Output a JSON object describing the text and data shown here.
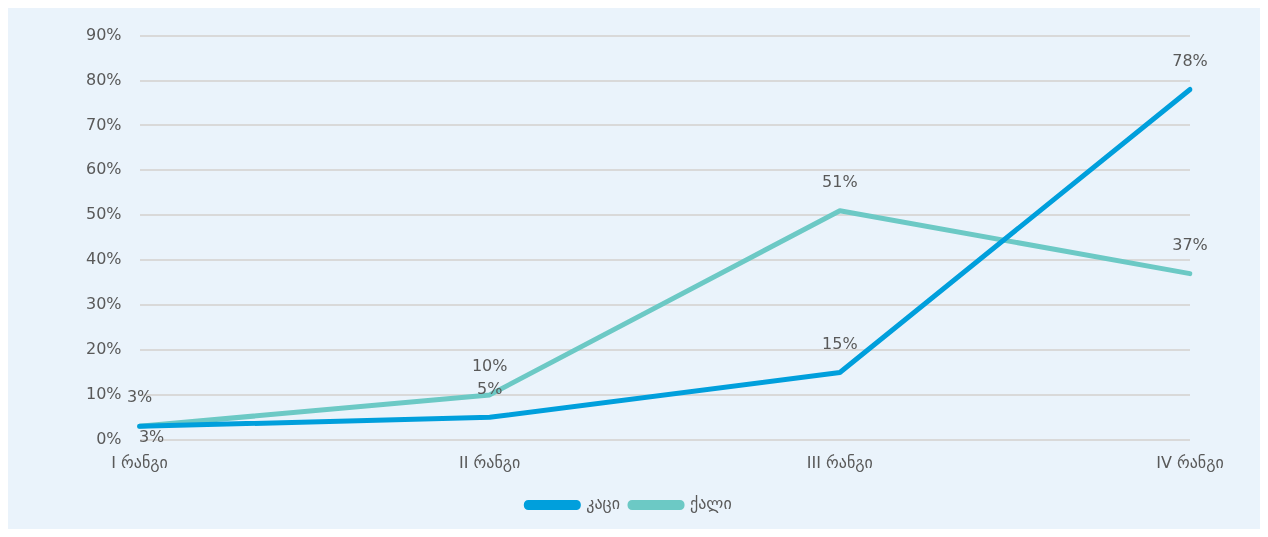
{
  "chart_data": {
    "type": "line",
    "categories": [
      "I რანგი",
      "II რანგი",
      "III რანგი",
      "IV რანგი"
    ],
    "series": [
      {
        "name": "კაცი",
        "color": "#009fdc",
        "values": [
          3,
          5,
          15,
          78
        ],
        "value_labels": [
          "3%",
          "5%",
          "15%",
          "78%"
        ]
      },
      {
        "name": "ქალი",
        "color": "#6cc9c5",
        "values": [
          3,
          10,
          51,
          37
        ],
        "value_labels": [
          "3%",
          "10%",
          "51%",
          "37%"
        ]
      }
    ],
    "ylim": [
      0,
      90
    ],
    "yticks": [
      {
        "value": 0,
        "label": "0%"
      },
      {
        "value": 10,
        "label": "10%"
      },
      {
        "value": 20,
        "label": "20%"
      },
      {
        "value": 30,
        "label": "30%"
      },
      {
        "value": 40,
        "label": "40%"
      },
      {
        "value": 50,
        "label": "50%"
      },
      {
        "value": 60,
        "label": "60%"
      },
      {
        "value": 70,
        "label": "70%"
      },
      {
        "value": 80,
        "label": "80%"
      },
      {
        "value": 90,
        "label": "90%"
      }
    ],
    "grid": "y",
    "legend": "bottom",
    "marker": "none",
    "line_style": "solid"
  }
}
